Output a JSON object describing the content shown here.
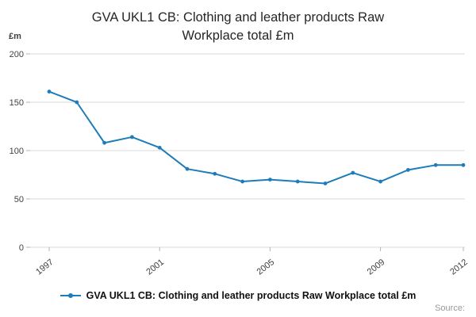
{
  "title": "GVA UKL1 CB: Clothing and leather products Raw Workplace total £m",
  "y_axis_unit": "£m",
  "source_label": "Source:",
  "colors": {
    "series_blue": "#1d7cba",
    "gridline": "#d9d9d9",
    "tick_text": "#414042"
  },
  "chart_data": {
    "type": "line",
    "title": "GVA UKL1 CB: Clothing and leather products Raw Workplace total £m",
    "xlabel": "",
    "ylabel": "£m",
    "x": [
      1997,
      1998,
      1999,
      2000,
      2001,
      2002,
      2003,
      2004,
      2005,
      2006,
      2007,
      2008,
      2009,
      2010,
      2011,
      2012
    ],
    "series": [
      {
        "name": "GVA UKL1 CB: Clothing and leather products Raw Workplace total £m",
        "color": "#1d7cba",
        "values": [
          161,
          150,
          108,
          114,
          103,
          81,
          76,
          68,
          70,
          68,
          66,
          77,
          68,
          80,
          85,
          85
        ]
      }
    ],
    "ylim": [
      0,
      200
    ],
    "yticks": [
      0,
      50,
      100,
      150,
      200
    ],
    "xticks": [
      1997,
      2001,
      2005,
      2009,
      2012
    ],
    "grid": true,
    "legend_position": "bottom"
  }
}
